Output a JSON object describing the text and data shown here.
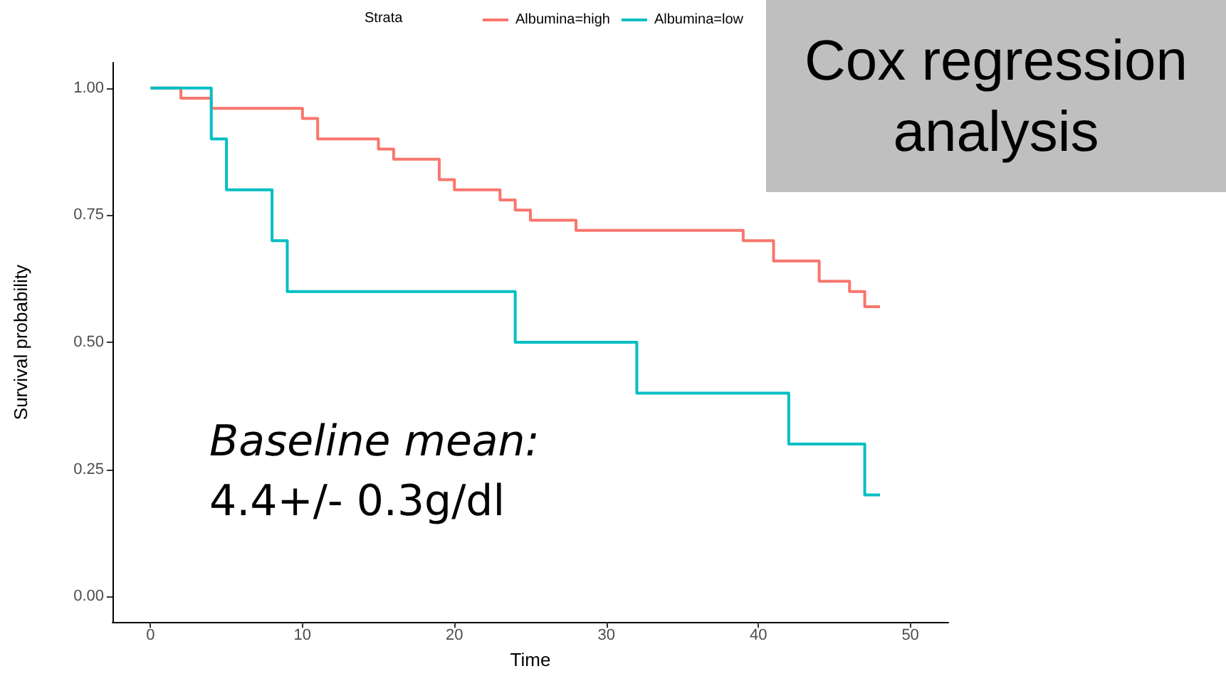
{
  "chart_data": {
    "type": "step",
    "xlabel": "Time",
    "ylabel": "Survival probability",
    "legend_title": "Strata",
    "legend": "top",
    "grid": false,
    "marker": "none",
    "xlim": [
      -2.5,
      52.5
    ],
    "xticks": [
      0,
      10,
      20,
      30,
      40,
      50
    ],
    "ylim": [
      -0.05,
      1.05
    ],
    "yticks": [
      {
        "value": 0,
        "label": "0.00"
      },
      {
        "value": 0.25,
        "label": "0.25"
      },
      {
        "value": 0.5,
        "label": "0.50"
      },
      {
        "value": 0.75,
        "label": "0.75"
      },
      {
        "value": 1,
        "label": "1.00"
      }
    ],
    "series": [
      {
        "name": "Albumina=high",
        "color": "#f8766d",
        "x": [
          0,
          2,
          4,
          10,
          11,
          15,
          16,
          19,
          20,
          23,
          24,
          25,
          28,
          39,
          41,
          44,
          46,
          47,
          48
        ],
        "values": [
          1,
          0.98,
          0.96,
          0.94,
          0.9,
          0.88,
          0.86,
          0.82,
          0.8,
          0.78,
          0.76,
          0.74,
          0.72,
          0.7,
          0.66,
          0.62,
          0.6,
          0.57,
          0.57
        ]
      },
      {
        "name": "Albumina=low",
        "color": "#00bfc4",
        "x": [
          0,
          4,
          5,
          8,
          9,
          24,
          32,
          42,
          47,
          48
        ],
        "values": [
          1,
          0.9,
          0.8,
          0.7,
          0.6,
          0.5,
          0.4,
          0.3,
          0.2,
          0.2
        ]
      }
    ],
    "annotations": [
      "Cox regression analysis",
      "Baseline mean:\n4.4+/- 0.3g/dl"
    ]
  }
}
